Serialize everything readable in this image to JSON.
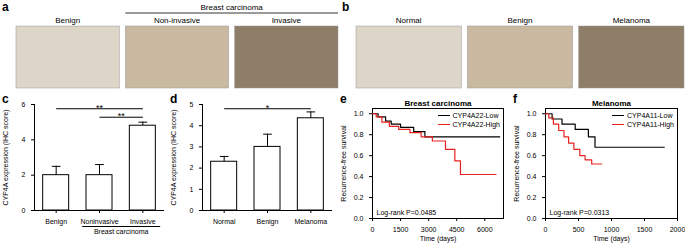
{
  "image_panels": [
    {
      "panel": "a",
      "images": [
        "Benign",
        "Non-invasive",
        "Invasive"
      ],
      "groups": [
        {
          "label": "Breast carcinoma",
          "images": [
            "Non-invasive",
            "Invasive"
          ]
        }
      ]
    },
    {
      "panel": "b",
      "images": [
        "Normal",
        "Benign",
        "Melanoma"
      ]
    }
  ],
  "chart_data": [
    {
      "panel": "c",
      "type": "bar",
      "ylabel": "CYP4A expression (IHC score)",
      "categories": [
        "Benign",
        "Noninvasive",
        "Invasive"
      ],
      "values": [
        2.0,
        2.0,
        4.8
      ],
      "errors": [
        0.5,
        0.6,
        0.2
      ],
      "color": "#ffffff",
      "ylim": [
        0,
        6
      ],
      "yticks": [
        0,
        2,
        4,
        6
      ],
      "group_labels": [
        {
          "text": "Breast carcinoma",
          "categories": [
            "Noninvasive",
            "Invasive"
          ]
        }
      ],
      "annotations": [
        {
          "text": "**",
          "from": "Benign",
          "to": "Invasive"
        },
        {
          "text": "**",
          "from": "Noninvasive",
          "to": "Invasive"
        }
      ]
    },
    {
      "panel": "d",
      "type": "bar",
      "ylabel": "CYP4A expression (IHC score)",
      "categories": [
        "Normal",
        "Benign",
        "Melanoma"
      ],
      "values": [
        2.3,
        3.0,
        4.35
      ],
      "errors": [
        0.25,
        0.6,
        0.3
      ],
      "color": "#ffffff",
      "ylim": [
        0,
        5
      ],
      "yticks": [
        0,
        1,
        2,
        3,
        4,
        5
      ],
      "annotations": [
        {
          "text": "*",
          "from": "Normal",
          "to": "Melanoma"
        }
      ]
    },
    {
      "panel": "e",
      "type": "line",
      "title": "Breast carcinoma",
      "xlabel": "Time (days)",
      "ylabel": "Recurrence-free survival",
      "line_style": "step",
      "legend": "upper right",
      "xlim": [
        0,
        7000
      ],
      "xticks": [
        0,
        1500,
        3000,
        4500,
        6000
      ],
      "ylim": [
        0,
        1.05
      ],
      "yticks": [
        {
          "value": 0,
          "label": "0.0"
        },
        0.2,
        0.4,
        0.6,
        0.8,
        {
          "value": 1,
          "label": "1.0"
        }
      ],
      "annotations": [
        "Log-rank P=0.0485"
      ],
      "series": [
        {
          "name": "CYP4A22-Low",
          "color": "#000000",
          "x": [
            0,
            300,
            700,
            1000,
            1500,
            2200,
            2800,
            6800
          ],
          "values": [
            1,
            0.97,
            0.93,
            0.9,
            0.87,
            0.83,
            0.78,
            0.78
          ]
        },
        {
          "name": "CYP4A22-High",
          "color": "#e8201e",
          "x": [
            0,
            200,
            500,
            900,
            1400,
            2000,
            2600,
            3200,
            3900,
            4400,
            4700,
            6600
          ],
          "values": [
            1,
            0.97,
            0.92,
            0.88,
            0.85,
            0.82,
            0.78,
            0.74,
            0.66,
            0.55,
            0.42,
            0.42
          ]
        }
      ]
    },
    {
      "panel": "f",
      "type": "line",
      "title": "Melanoma",
      "xlabel": "Time (days)",
      "ylabel": "Recurrence-free survival",
      "line_style": "step",
      "legend": "upper right",
      "xlim": [
        0,
        2000
      ],
      "xticks": [
        0,
        500,
        1000,
        1500,
        2000
      ],
      "ylim": [
        0,
        1.05
      ],
      "yticks": [
        {
          "value": 0,
          "label": "0.0"
        },
        0.2,
        0.4,
        0.6,
        0.8,
        {
          "value": 1,
          "label": "1.0"
        }
      ],
      "annotations": [
        "Log-rank P=0.0313"
      ],
      "series": [
        {
          "name": "CYP4A11-Low",
          "color": "#000000",
          "x": [
            0,
            100,
            250,
            450,
            650,
            750,
            1800
          ],
          "values": [
            1,
            0.95,
            0.9,
            0.85,
            0.78,
            0.68,
            0.68
          ]
        },
        {
          "name": "CYP4A11-High",
          "color": "#e8201e",
          "x": [
            0,
            50,
            120,
            200,
            280,
            350,
            430,
            520,
            600,
            700,
            850
          ],
          "values": [
            1,
            0.96,
            0.9,
            0.84,
            0.78,
            0.72,
            0.66,
            0.6,
            0.56,
            0.52,
            0.52
          ]
        }
      ]
    }
  ]
}
